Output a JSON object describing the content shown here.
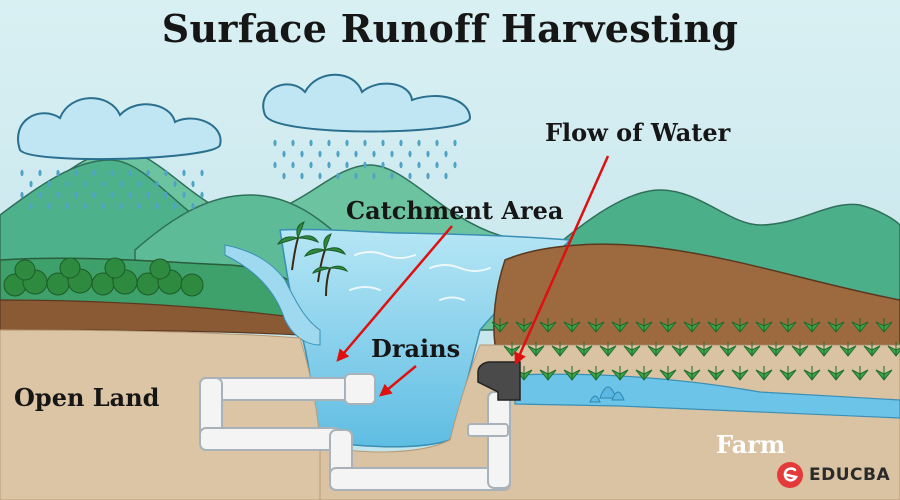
{
  "title": "Surface Runoff Harvesting",
  "labels": {
    "flow_of_water": "Flow of Water",
    "catchment_area": "Catchment Area",
    "drains": "Drains",
    "open_land": "Open Land",
    "farm": "Farm"
  },
  "brand": {
    "name": "EDUCBA",
    "icon": "educba-logo-icon",
    "color": "#e53a3a"
  },
  "colors": {
    "sky": "#cfe9ee",
    "water": "#8fd3ea",
    "ground": "#dcc5a5",
    "soil": "#9c6a3e",
    "hills": "#48b28c",
    "arrow": "#e01010"
  }
}
